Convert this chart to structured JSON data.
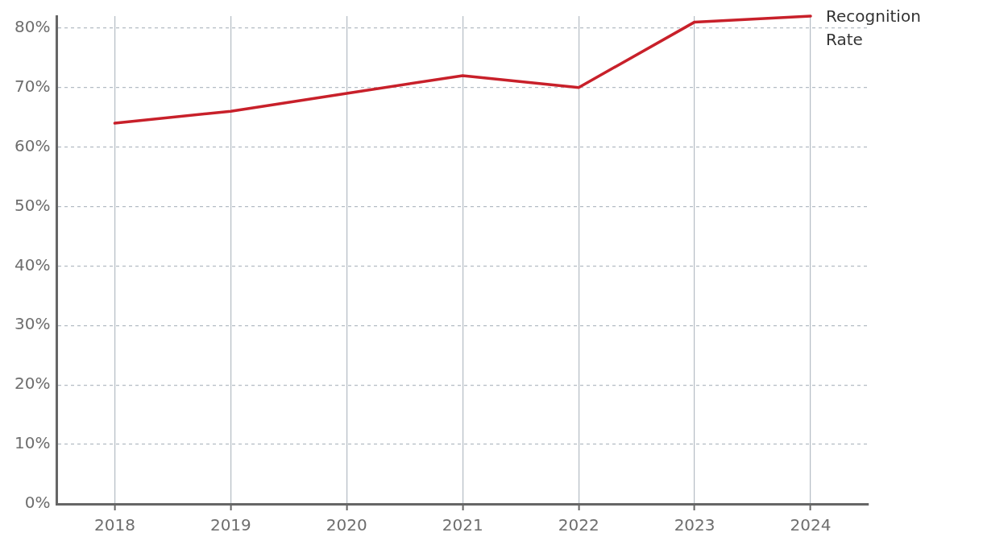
{
  "chart_data": {
    "type": "line",
    "categories": [
      "2018",
      "2019",
      "2020",
      "2021",
      "2022",
      "2023",
      "2024"
    ],
    "series": [
      {
        "name": "Recognition Rate",
        "color": "#c8202a",
        "values": [
          64,
          66,
          69,
          72,
          70,
          81,
          82
        ]
      }
    ],
    "ylim": [
      0,
      82
    ],
    "yticks": [
      {
        "value": 0,
        "label": "0%"
      },
      {
        "value": 10,
        "label": "10%"
      },
      {
        "value": 20,
        "label": "20%"
      },
      {
        "value": 30,
        "label": "30%"
      },
      {
        "value": 40,
        "label": "40%"
      },
      {
        "value": 50,
        "label": "50%"
      },
      {
        "value": 60,
        "label": "60%"
      },
      {
        "value": 70,
        "label": "70%"
      },
      {
        "value": 80,
        "label": "80%"
      }
    ],
    "grid": true,
    "marker": "none",
    "line_style": "solid"
  }
}
